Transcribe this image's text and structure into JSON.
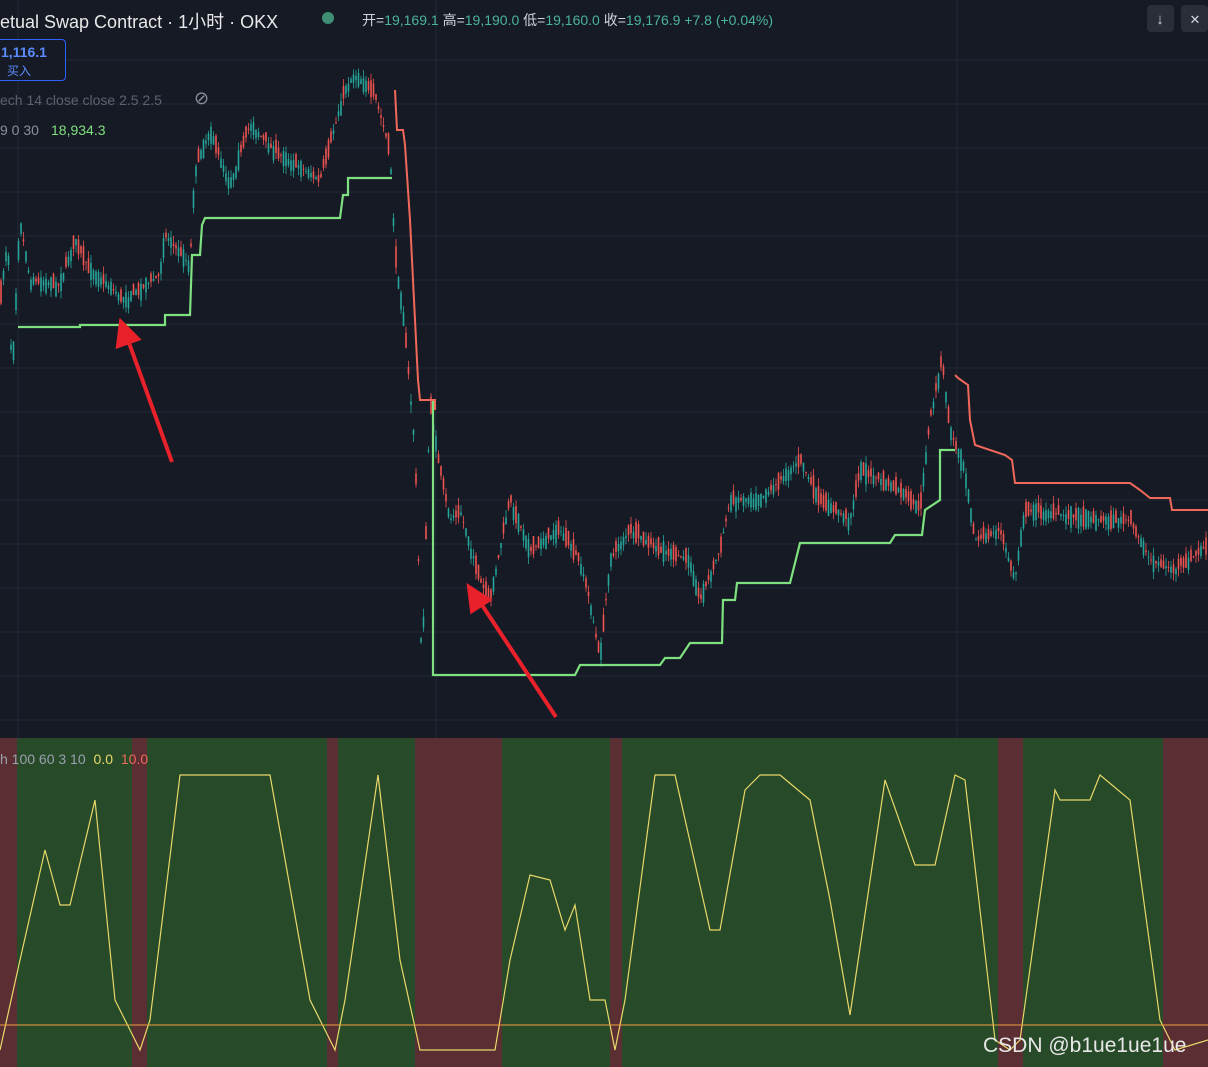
{
  "header": {
    "symbol": "etual Swap Contract · 1小时 · OKX",
    "open_label": "开=",
    "open": "19,169.1",
    "high_label": "高=",
    "high": "19,190.0",
    "low_label": "低=",
    "low": "19,160.0",
    "close_label": "收=",
    "close": "19,176.9",
    "change": "+7.8 (+0.04%)"
  },
  "buy_box": {
    "price": "1,116.1",
    "label": "买入"
  },
  "indicators": {
    "line1": "ech 14 close close 2.5 2.5",
    "line2_params": "9 0 30",
    "line2_value": "18,934.3"
  },
  "lower_pane": {
    "params": "h 100 60 3 10",
    "value1": "0.0",
    "value2": "10.0"
  },
  "watermark": "CSDN @b1ue1ue1ue"
}
